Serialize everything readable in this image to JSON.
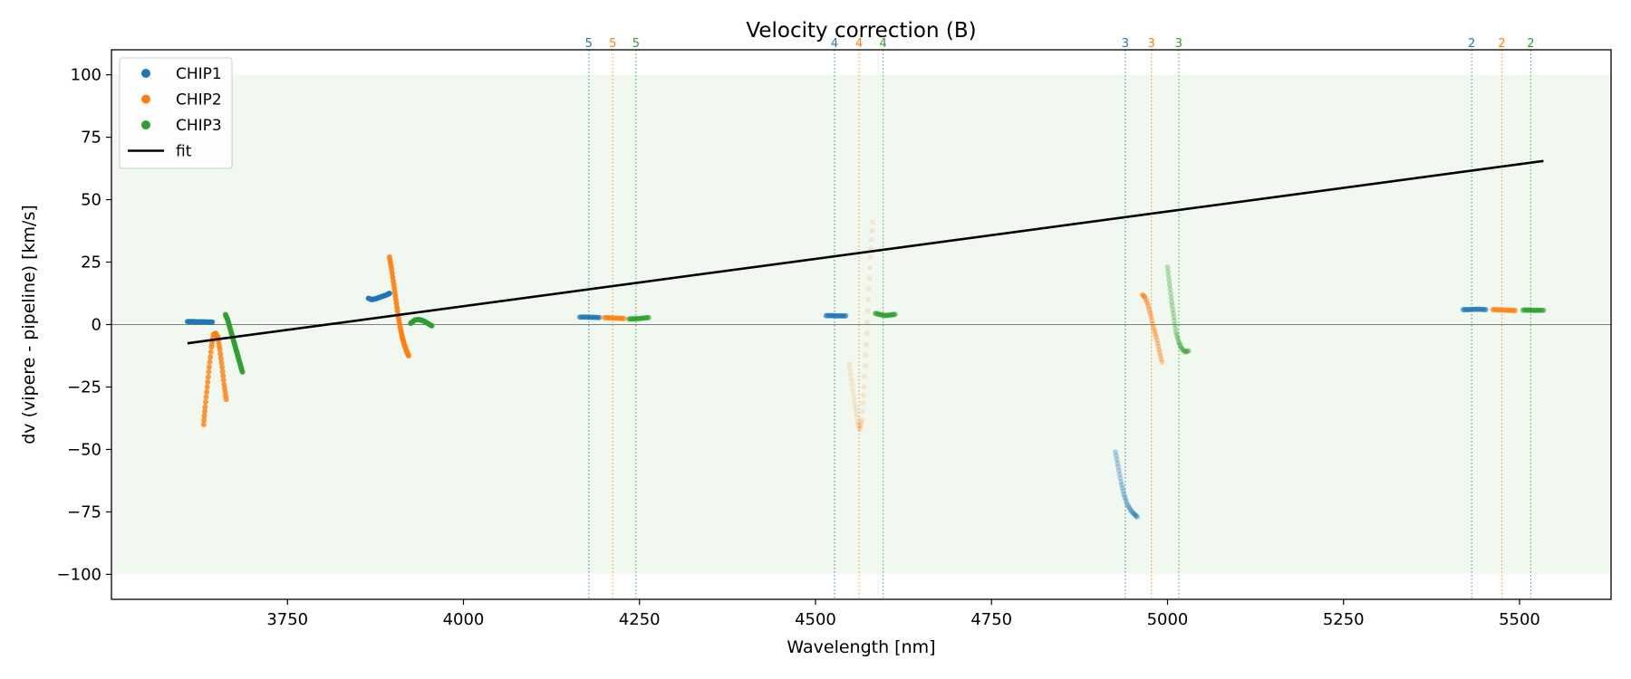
{
  "chart_data": {
    "type": "scatter",
    "title": "Velocity correction (B)",
    "xlabel": "Wavelength [nm]",
    "ylabel": "dv (vipere - pipeline) [km/s]",
    "xlim": [
      3500,
      5630
    ],
    "ylim": [
      -110,
      110
    ],
    "xticks": [
      3750,
      4000,
      4250,
      4500,
      4750,
      5000,
      5250,
      5500
    ],
    "xtick_labels": [
      "3750",
      "4000",
      "4250",
      "4500",
      "4750",
      "5000",
      "5250",
      "5500"
    ],
    "yticks": [
      -100,
      -75,
      -50,
      -25,
      0,
      25,
      50,
      75,
      100
    ],
    "ytick_labels": [
      "−100",
      "−75",
      "−50",
      "−25",
      "0",
      "25",
      "50",
      "75",
      "100"
    ],
    "band": [
      -100,
      100
    ],
    "zero_line": 0,
    "colors": {
      "CHIP1": "#1f77b4",
      "CHIP2": "#ff7f0e",
      "CHIP3": "#2ca02c",
      "fit": "#000000",
      "band": "#2ca02c"
    },
    "legend": {
      "placement": "top-left",
      "entries": [
        {
          "label": "CHIP1",
          "series": "CHIP1",
          "kind": "marker"
        },
        {
          "label": "CHIP2",
          "series": "CHIP2",
          "kind": "marker"
        },
        {
          "label": "CHIP3",
          "series": "CHIP3",
          "kind": "marker"
        },
        {
          "label": "fit",
          "series": "fit",
          "kind": "line"
        }
      ]
    },
    "order_markers": [
      {
        "label": "5",
        "series": "CHIP1",
        "x": 4178
      },
      {
        "label": "5",
        "series": "CHIP2",
        "x": 4212
      },
      {
        "label": "5",
        "series": "CHIP3",
        "x": 4245
      },
      {
        "label": "4",
        "series": "CHIP1",
        "x": 4527
      },
      {
        "label": "4",
        "series": "CHIP2",
        "x": 4562
      },
      {
        "label": "4",
        "series": "CHIP3",
        "x": 4596
      },
      {
        "label": "3",
        "series": "CHIP1",
        "x": 4940
      },
      {
        "label": "3",
        "series": "CHIP2",
        "x": 4977
      },
      {
        "label": "3",
        "series": "CHIP3",
        "x": 5016
      },
      {
        "label": "2",
        "series": "CHIP1",
        "x": 5432
      },
      {
        "label": "2",
        "series": "CHIP2",
        "x": 5475
      },
      {
        "label": "2",
        "series": "CHIP3",
        "x": 5516
      }
    ],
    "fit": {
      "name": "fit",
      "x": [
        3608,
        5534
      ],
      "y": [
        -7.5,
        65.5
      ]
    },
    "series": [
      {
        "name": "CHIP1",
        "segments": [
          {
            "alpha": 0.9,
            "x": [
              3608,
              3615,
              3622,
              3629,
              3636,
              3643
            ],
            "y": [
              1.2,
              1.2,
              1.1,
              1.1,
              1.0,
              1.0
            ]
          },
          {
            "alpha": 0.9,
            "x": [
              3865,
              3870,
              3875,
              3880,
              3885,
              3890,
              3895
            ],
            "y": [
              10.5,
              10.0,
              10.3,
              10.8,
              11.3,
              11.8,
              12.5
            ]
          },
          {
            "alpha": 0.55,
            "x": [
              4165,
              4172,
              4179,
              4186,
              4193
            ],
            "y": [
              3.0,
              3.0,
              2.9,
              2.9,
              2.8
            ]
          },
          {
            "alpha": 0.55,
            "x": [
              4515,
              4522,
              4529,
              4536,
              4543
            ],
            "y": [
              3.6,
              3.6,
              3.5,
              3.5,
              3.5
            ]
          },
          {
            "alpha": 0.3,
            "x": [
              4926,
              4930,
              4934,
              4938,
              4943,
              4948,
              4953,
              4957
            ],
            "y": [
              -51,
              -57,
              -63,
              -68,
              -72,
              -74.5,
              -76,
              -77
            ]
          },
          {
            "alpha": 0.55,
            "x": [
              5420,
              5428,
              5436,
              5444,
              5452
            ],
            "y": [
              6.0,
              6.0,
              6.1,
              6.1,
              6.0
            ]
          }
        ]
      },
      {
        "name": "CHIP2",
        "segments": [
          {
            "alpha": 0.8,
            "x": [
              3631,
              3633,
              3636,
              3639,
              3642,
              3645,
              3648,
              3651,
              3654,
              3657,
              3660,
              3663
            ],
            "y": [
              -40,
              -33,
              -25,
              -17,
              -9,
              -4,
              -3.5,
              -5,
              -10,
              -17,
              -24,
              -30
            ]
          },
          {
            "alpha": 0.9,
            "x": [
              3895,
              3898,
              3901,
              3904,
              3907,
              3910,
              3913,
              3916,
              3919,
              3922
            ],
            "y": [
              27,
              22,
              16,
              10,
              4,
              -1,
              -5,
              -8,
              -10.5,
              -12.5
            ]
          },
          {
            "alpha": 0.55,
            "x": [
              4200,
              4207,
              4214,
              4221,
              4228
            ],
            "y": [
              2.8,
              2.7,
              2.6,
              2.5,
              2.4
            ]
          },
          {
            "alpha": 0.15,
            "x": [
              4548,
              4552,
              4556,
              4560,
              4563,
              4566,
              4569,
              4572,
              4575,
              4578,
              4581
            ],
            "y": [
              -16,
              -24,
              -32,
              -39,
              -42,
              -38,
              -25,
              -8,
              10,
              27,
              41
            ]
          },
          {
            "alpha": 0.35,
            "x": [
              4964,
              4968,
              4972,
              4976,
              4980,
              4984,
              4988,
              4992
            ],
            "y": [
              12,
              11,
              8,
              4,
              -1,
              -5,
              -10,
              -15
            ]
          },
          {
            "alpha": 0.55,
            "x": [
              5462,
              5470,
              5478,
              5486,
              5494
            ],
            "y": [
              6.0,
              5.9,
              5.8,
              5.7,
              5.6
            ]
          }
        ]
      },
      {
        "name": "CHIP3",
        "segments": [
          {
            "alpha": 0.9,
            "x": [
              3662,
              3665,
              3668,
              3671,
              3674,
              3677,
              3680,
              3683,
              3686
            ],
            "y": [
              4,
              2,
              -1,
              -4,
              -7,
              -10,
              -13,
              -16,
              -19
            ]
          },
          {
            "alpha": 0.9,
            "x": [
              3925,
              3931,
              3937,
              3943,
              3949,
              3955
            ],
            "y": [
              0.5,
              1.8,
              2.0,
              1.5,
              0.5,
              -0.5
            ]
          },
          {
            "alpha": 0.55,
            "x": [
              4235,
              4242,
              4249,
              4256,
              4263
            ],
            "y": [
              2.2,
              2.3,
              2.4,
              2.6,
              2.8
            ]
          },
          {
            "alpha": 0.55,
            "x": [
              4585,
              4592,
              4599,
              4606,
              4613
            ],
            "y": [
              4.5,
              4.0,
              3.6,
              3.8,
              4.1
            ]
          },
          {
            "alpha": 0.3,
            "x": [
              5000,
              5003,
              5006,
              5009,
              5012,
              5016,
              5020,
              5025,
              5030
            ],
            "y": [
              23,
              16,
              9,
              3,
              -3,
              -7,
              -9.5,
              -11,
              -10.5
            ]
          },
          {
            "alpha": 0.55,
            "x": [
              5505,
              5512,
              5519,
              5526,
              5534
            ],
            "y": [
              5.8,
              5.8,
              5.7,
              5.7,
              5.7
            ]
          }
        ]
      }
    ]
  }
}
